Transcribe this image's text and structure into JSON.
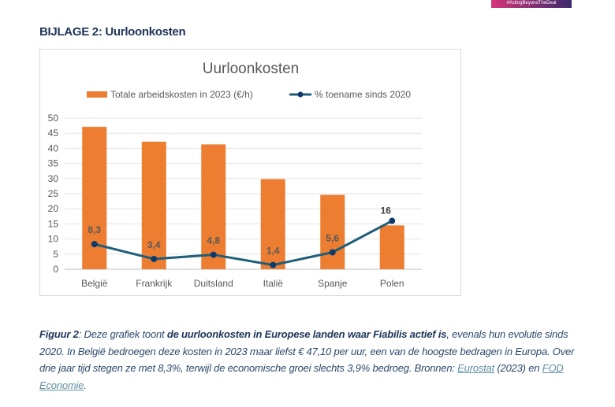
{
  "badge": "#ActingBeyondTheDeal",
  "heading": "BIJLAGE 2: Uurloonkosten",
  "chart_data": {
    "type": "bar+line",
    "title": "Uurloonkosten",
    "categories": [
      "België",
      "Frankrijk",
      "Duitsland",
      "Italië",
      "Spanje",
      "Polen"
    ],
    "series": [
      {
        "name": "Totale arbeidskosten in 2023 (€/h)",
        "type": "bar",
        "color": "#ed7d31",
        "values": [
          47.1,
          42.2,
          41.3,
          29.8,
          24.6,
          14.5
        ]
      },
      {
        "name": "% toename sinds 2020",
        "type": "line",
        "color": "#1f5f7a",
        "marker_color": "#0e3a6b",
        "values": [
          8.3,
          3.4,
          4.8,
          1.4,
          5.6,
          16
        ],
        "labels": [
          "8,3",
          "3,4",
          "4,8",
          "1,4",
          "5,6",
          "16"
        ]
      }
    ],
    "ylim": [
      0,
      50
    ],
    "yticks": [
      0,
      5,
      10,
      15,
      20,
      25,
      30,
      35,
      40,
      45,
      50
    ],
    "grid": true,
    "legend": "top"
  },
  "caption": {
    "label": "Figuur 2",
    "t1": ": Deze grafiek toont ",
    "bold": "de uurloonkosten in Europese landen waar Fiabilis actief is",
    "t2": ", evenals hun evolutie sinds 2020. In België bedroegen deze kosten in 2023 maar liefst € 47,10 per uur, een van de hoogste bedragen in Europa. Over drie jaar tijd stegen ze met 8,3%, terwijl de economische groei slechts 3,9% bedroeg. Bronnen: ",
    "link1": "Eurostat",
    "t3": " (2023) en ",
    "link2": "FOD Economie",
    "t4": "."
  }
}
